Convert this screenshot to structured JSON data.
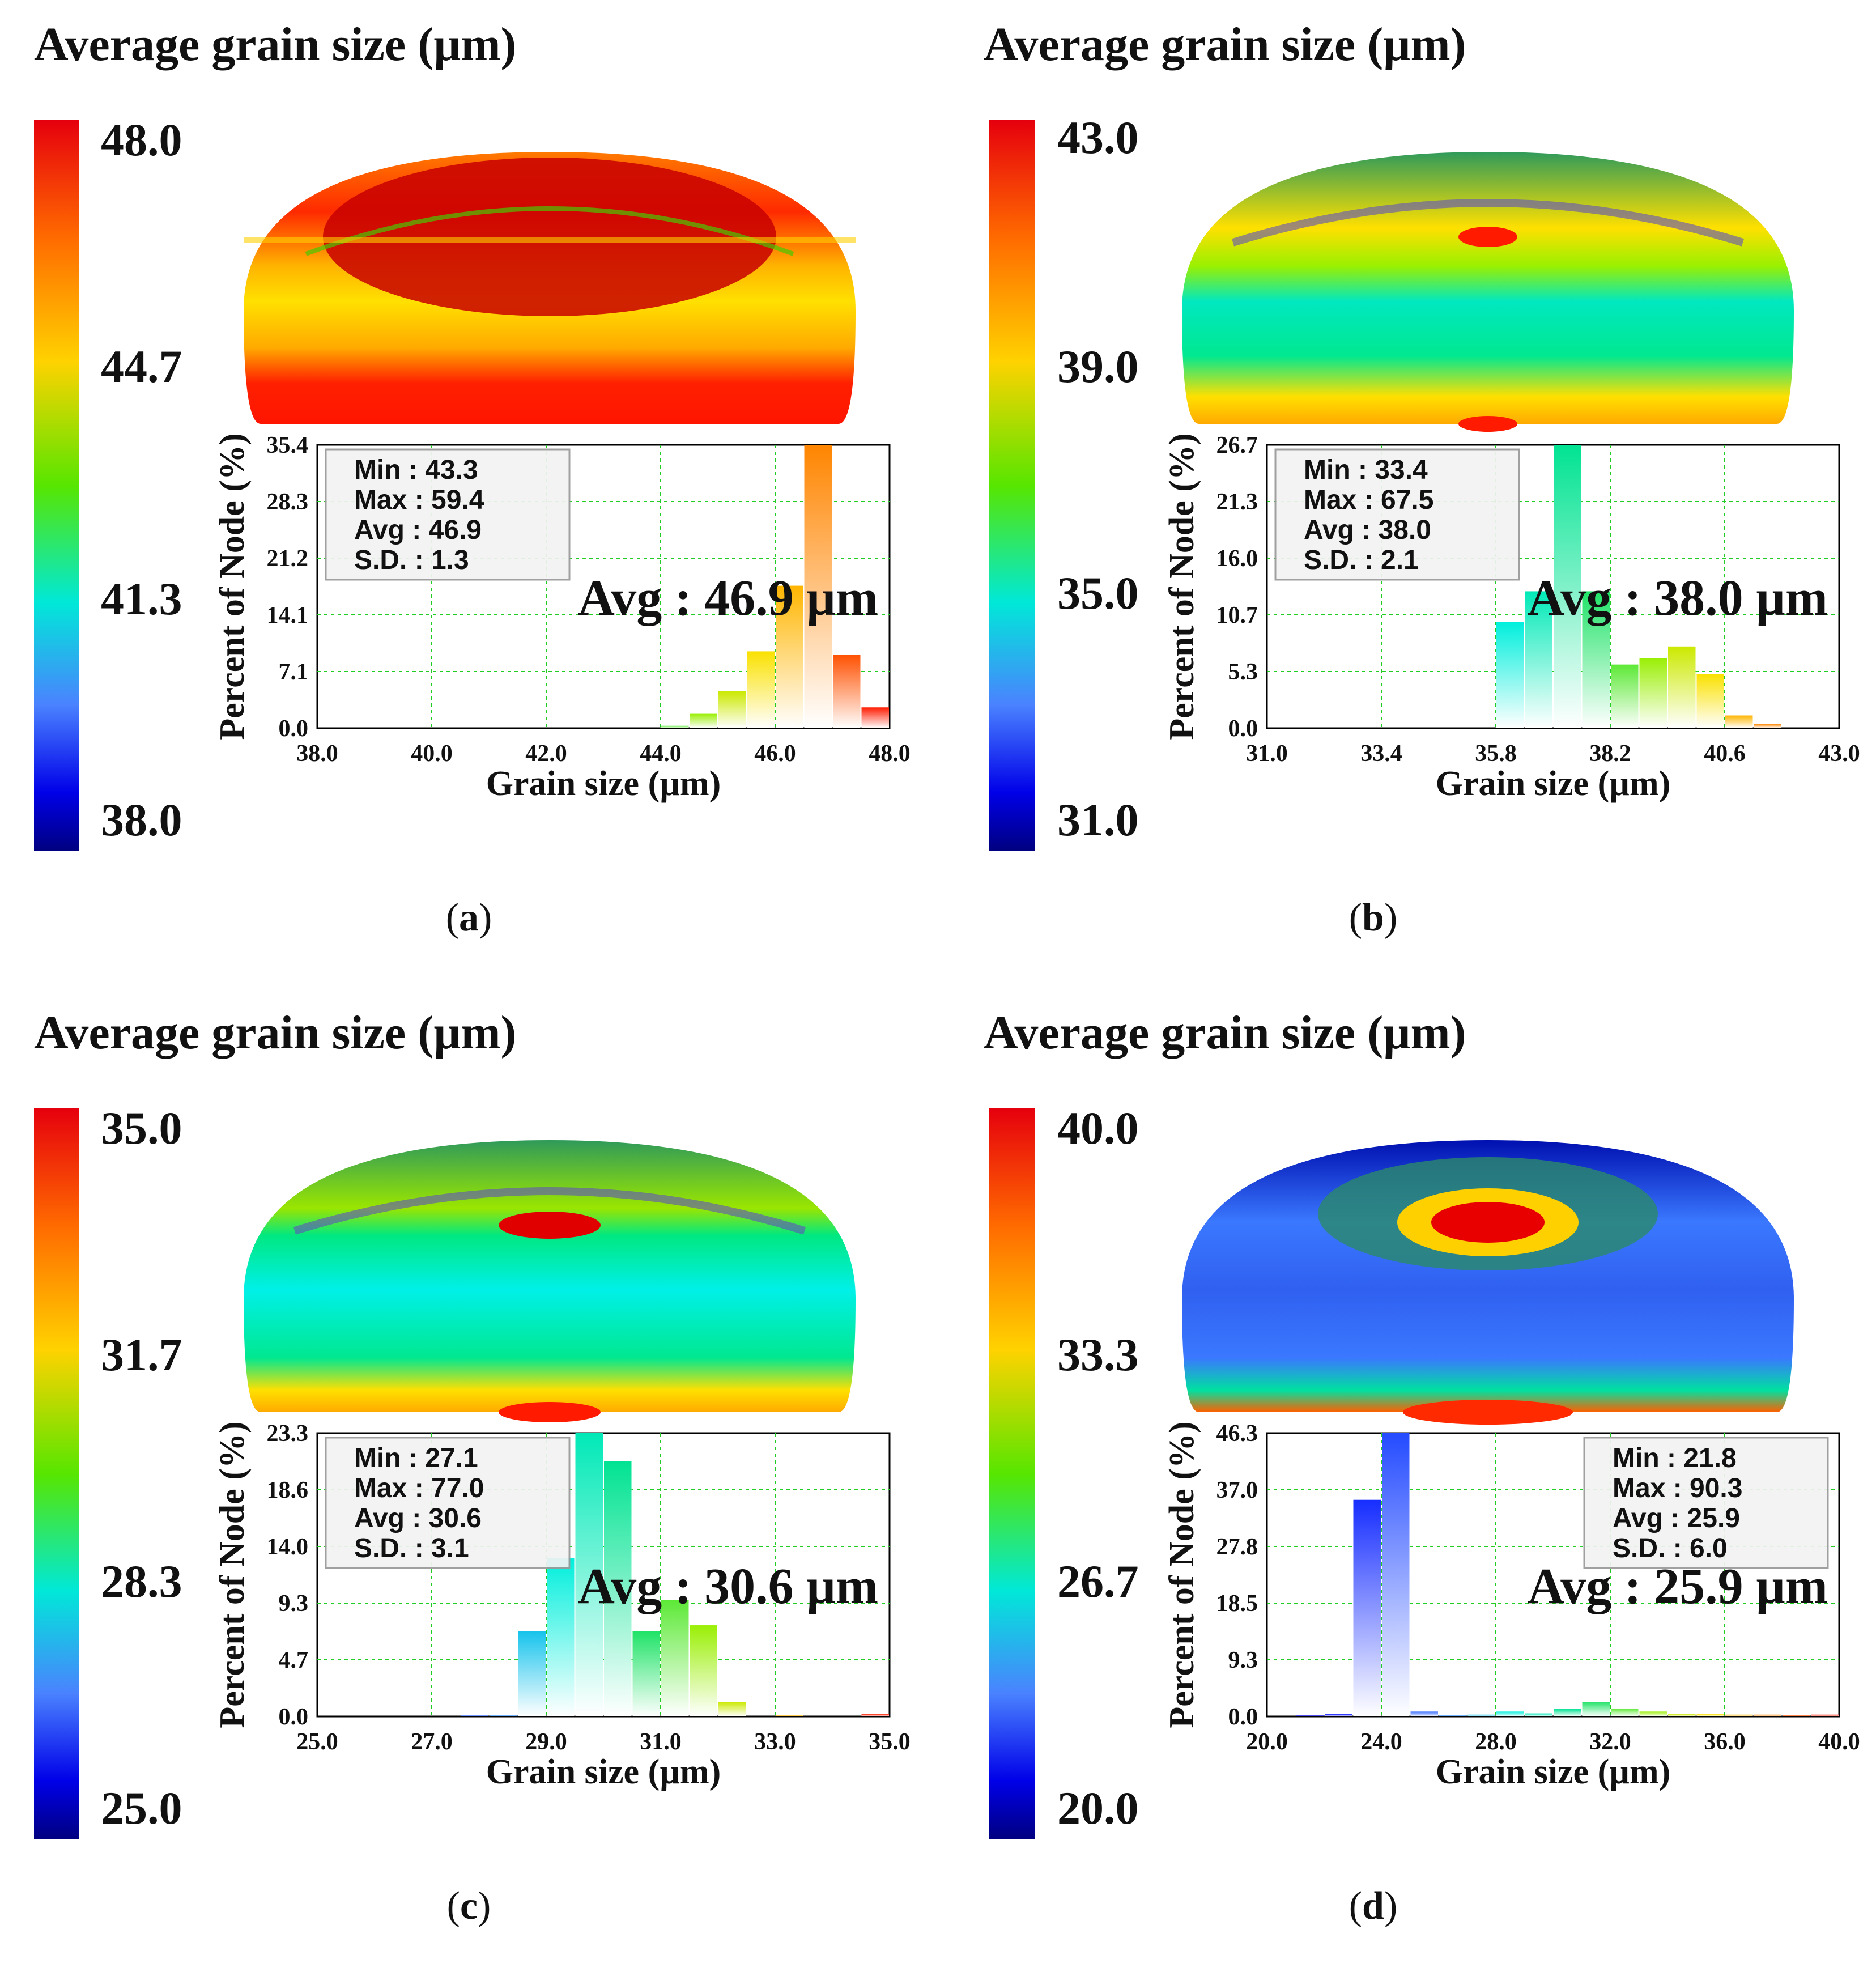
{
  "chart_data": [
    {
      "type": "bar",
      "panel_label": "a",
      "title": "Average grain size (µm)",
      "colorbar": {
        "ticks": [
          "48.0",
          "44.7",
          "41.3",
          "38.0"
        ],
        "range": [
          38.0,
          48.0
        ]
      },
      "xlabel": "Grain size (µm)",
      "ylabel": "Percent of Node (%)",
      "xlim": [
        38.0,
        48.0
      ],
      "ylim": [
        0.0,
        35.4
      ],
      "xticks": [
        "38.0",
        "40.0",
        "42.0",
        "44.0",
        "46.0",
        "48.0"
      ],
      "yticks": [
        "35.4",
        "28.3",
        "21.2",
        "14.1",
        "7.1",
        "0.0"
      ],
      "bin_width": 0.5,
      "bins": [
        {
          "x": 44.0,
          "y": 0.3
        },
        {
          "x": 44.5,
          "y": 1.8
        },
        {
          "x": 45.0,
          "y": 4.6
        },
        {
          "x": 45.5,
          "y": 9.6
        },
        {
          "x": 46.0,
          "y": 17.8
        },
        {
          "x": 46.5,
          "y": 35.4
        },
        {
          "x": 47.0,
          "y": 9.2
        },
        {
          "x": 47.5,
          "y": 2.6
        }
      ],
      "stats": [
        {
          "label": "Min",
          "value": "43.3"
        },
        {
          "label": "Max",
          "value": "59.4"
        },
        {
          "label": "Avg",
          "value": "46.9"
        },
        {
          "label": "S.D.",
          "value": "1.3"
        }
      ],
      "stats_box": "left",
      "annotation": "Avg : 46.9 µm"
    },
    {
      "type": "bar",
      "panel_label": "b",
      "title": "Average grain size (µm)",
      "colorbar": {
        "ticks": [
          "43.0",
          "39.0",
          "35.0",
          "31.0"
        ],
        "range": [
          31.0,
          43.0
        ]
      },
      "xlabel": "Grain size (µm)",
      "ylabel": "Percent of Node (%)",
      "xlim": [
        31.0,
        43.0
      ],
      "ylim": [
        0.0,
        26.7
      ],
      "xticks": [
        "31.0",
        "33.4",
        "35.8",
        "38.2",
        "40.6",
        "43.0"
      ],
      "yticks": [
        "26.7",
        "21.3",
        "16.0",
        "10.7",
        "5.3",
        "0.0"
      ],
      "bin_width": 0.6,
      "bins": [
        {
          "x": 35.8,
          "y": 10.0
        },
        {
          "x": 36.4,
          "y": 12.9
        },
        {
          "x": 37.0,
          "y": 26.7
        },
        {
          "x": 37.6,
          "y": 12.9
        },
        {
          "x": 38.2,
          "y": 6.0
        },
        {
          "x": 38.8,
          "y": 6.6
        },
        {
          "x": 39.4,
          "y": 7.7
        },
        {
          "x": 40.0,
          "y": 5.1
        },
        {
          "x": 40.6,
          "y": 1.2
        },
        {
          "x": 41.2,
          "y": 0.4
        }
      ],
      "stats": [
        {
          "label": "Min",
          "value": "33.4"
        },
        {
          "label": "Max",
          "value": "67.5"
        },
        {
          "label": "Avg",
          "value": "38.0"
        },
        {
          "label": "S.D.",
          "value": "2.1"
        }
      ],
      "stats_box": "left",
      "annotation": "Avg : 38.0 µm"
    },
    {
      "type": "bar",
      "panel_label": "c",
      "title": "Average grain size (µm)",
      "colorbar": {
        "ticks": [
          "35.0",
          "31.7",
          "28.3",
          "25.0"
        ],
        "range": [
          25.0,
          35.0
        ]
      },
      "xlabel": "Grain size (µm)",
      "ylabel": "Percent of Node (%)",
      "xlim": [
        25.0,
        35.0
      ],
      "ylim": [
        0.0,
        23.3
      ],
      "xticks": [
        "25.0",
        "27.0",
        "29.0",
        "31.0",
        "33.0",
        "35.0"
      ],
      "yticks": [
        "23.3",
        "18.6",
        "14.0",
        "9.3",
        "4.7",
        "0.0"
      ],
      "bin_width": 0.5,
      "bins": [
        {
          "x": 27.5,
          "y": 0.1
        },
        {
          "x": 28.0,
          "y": 0.1
        },
        {
          "x": 28.5,
          "y": 7.0
        },
        {
          "x": 29.0,
          "y": 13.0
        },
        {
          "x": 29.5,
          "y": 23.3
        },
        {
          "x": 30.0,
          "y": 21.0
        },
        {
          "x": 30.5,
          "y": 7.0
        },
        {
          "x": 31.0,
          "y": 9.6
        },
        {
          "x": 31.5,
          "y": 7.5
        },
        {
          "x": 32.0,
          "y": 1.2
        },
        {
          "x": 33.0,
          "y": 0.1
        },
        {
          "x": 34.5,
          "y": 0.2
        }
      ],
      "stats": [
        {
          "label": "Min",
          "value": "27.1"
        },
        {
          "label": "Max",
          "value": "77.0"
        },
        {
          "label": "Avg",
          "value": "30.6"
        },
        {
          "label": "S.D.",
          "value": "3.1"
        }
      ],
      "stats_box": "left",
      "annotation": "Avg : 30.6 µm"
    },
    {
      "type": "bar",
      "panel_label": "d",
      "title": "Average grain size (µm)",
      "colorbar": {
        "ticks": [
          "40.0",
          "33.3",
          "26.7",
          "20.0"
        ],
        "range": [
          20.0,
          40.0
        ]
      },
      "xlabel": "Grain size (µm)",
      "ylabel": "Percent of Node (%)",
      "xlim": [
        20.0,
        40.0
      ],
      "ylim": [
        0.0,
        46.3
      ],
      "xticks": [
        "20.0",
        "24.0",
        "28.0",
        "32.0",
        "36.0",
        "40.0"
      ],
      "yticks": [
        "46.3",
        "37.0",
        "27.8",
        "18.5",
        "9.3",
        "0.0"
      ],
      "bin_width": 1.0,
      "bins": [
        {
          "x": 21.0,
          "y": 0.2
        },
        {
          "x": 22.0,
          "y": 0.4
        },
        {
          "x": 23.0,
          "y": 35.4
        },
        {
          "x": 24.0,
          "y": 46.3
        },
        {
          "x": 25.0,
          "y": 0.8
        },
        {
          "x": 26.0,
          "y": 0.2
        },
        {
          "x": 27.0,
          "y": 0.3
        },
        {
          "x": 28.0,
          "y": 0.8
        },
        {
          "x": 29.0,
          "y": 0.5
        },
        {
          "x": 30.0,
          "y": 1.2
        },
        {
          "x": 31.0,
          "y": 2.4
        },
        {
          "x": 32.0,
          "y": 1.3
        },
        {
          "x": 33.0,
          "y": 0.8
        },
        {
          "x": 34.0,
          "y": 0.4
        },
        {
          "x": 35.0,
          "y": 0.4
        },
        {
          "x": 36.0,
          "y": 0.3
        },
        {
          "x": 37.0,
          "y": 0.3
        },
        {
          "x": 38.0,
          "y": 0.2
        },
        {
          "x": 39.0,
          "y": 0.3
        }
      ],
      "stats": [
        {
          "label": "Min",
          "value": "21.8"
        },
        {
          "label": "Max",
          "value": "90.3"
        },
        {
          "label": "Avg",
          "value": "25.9"
        },
        {
          "label": "S.D.",
          "value": "6.0"
        }
      ],
      "stats_box": "right",
      "annotation": "Avg : 25.9 µm"
    }
  ]
}
